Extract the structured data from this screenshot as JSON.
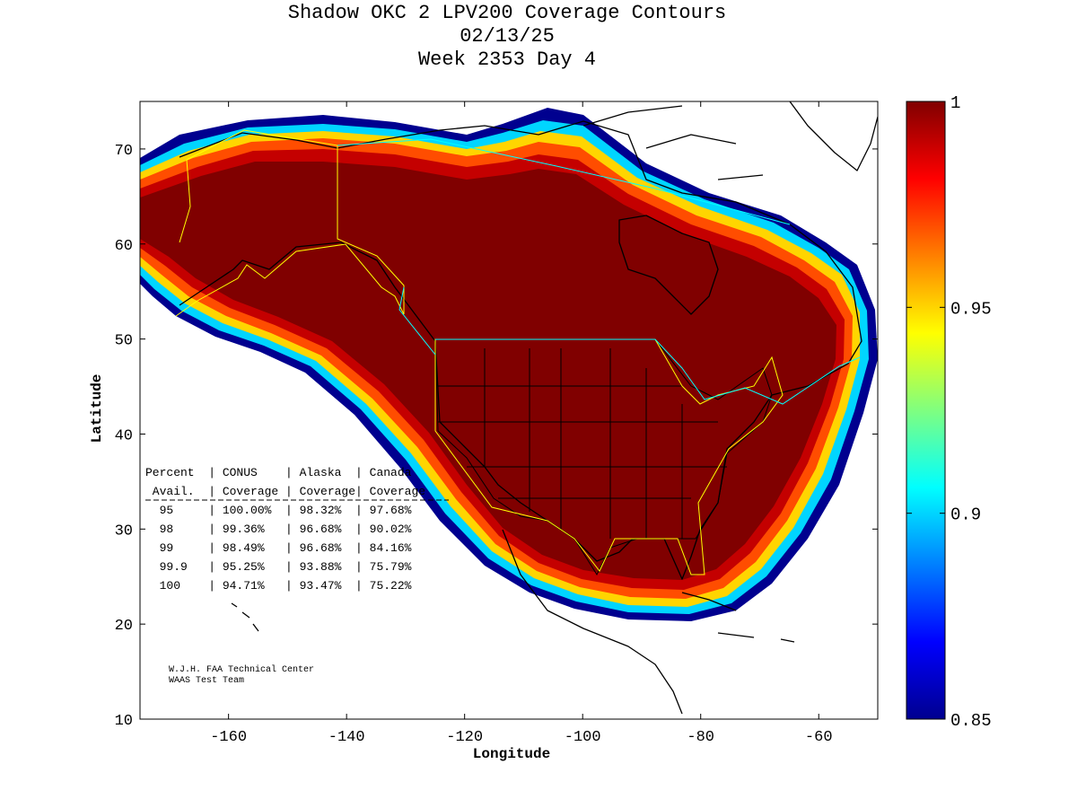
{
  "chart_data": {
    "type": "heatmap",
    "title_lines": [
      "Shadow OKC 2 LPV200 Coverage Contours",
      "02/13/25",
      "Week 2353 Day 4"
    ],
    "xlabel": "Longitude",
    "ylabel": "Latitude",
    "xlim": [
      -175,
      -50
    ],
    "ylim": [
      10,
      75
    ],
    "xticks": [
      -160,
      -140,
      -120,
      -100,
      -80,
      -60
    ],
    "yticks": [
      10,
      20,
      30,
      40,
      50,
      60,
      70
    ],
    "colorbar": {
      "min": 0.85,
      "max": 1,
      "ticks": [
        {
          "value": 1,
          "label": "1"
        },
        {
          "value": 0.95,
          "label": "0.95"
        },
        {
          "value": 0.9,
          "label": "0.9"
        },
        {
          "value": 0.85,
          "label": "0.85"
        }
      ]
    },
    "coverage_table": {
      "header1": [
        "Percent",
        "CONUS",
        "Alaska",
        "Canada"
      ],
      "header2": [
        "Avail.",
        "Coverage",
        "Coverage",
        "Coverage"
      ],
      "rows": [
        {
          "avail": "95",
          "conus": "100.00%",
          "alaska": "98.32%",
          "canada": "97.68%"
        },
        {
          "avail": "98",
          "conus": "99.36%",
          "alaska": "96.68%",
          "canada": "90.02%"
        },
        {
          "avail": "99",
          "conus": "98.49%",
          "alaska": "96.68%",
          "canada": "84.16%"
        },
        {
          "avail": "99.9",
          "conus": "95.25%",
          "alaska": "93.88%",
          "canada": "75.79%"
        },
        {
          "avail": "100",
          "conus": "94.71%",
          "alaska": "93.47%",
          "canada": "75.22%"
        }
      ]
    },
    "credit_lines": [
      "W.J.H. FAA Technical Center",
      "WAAS Test Team"
    ]
  },
  "colors": {
    "full_coverage": "#800000",
    "grid_outline": "#000000",
    "region_outline": "#ffff00",
    "border_outline": "#00ffff"
  }
}
